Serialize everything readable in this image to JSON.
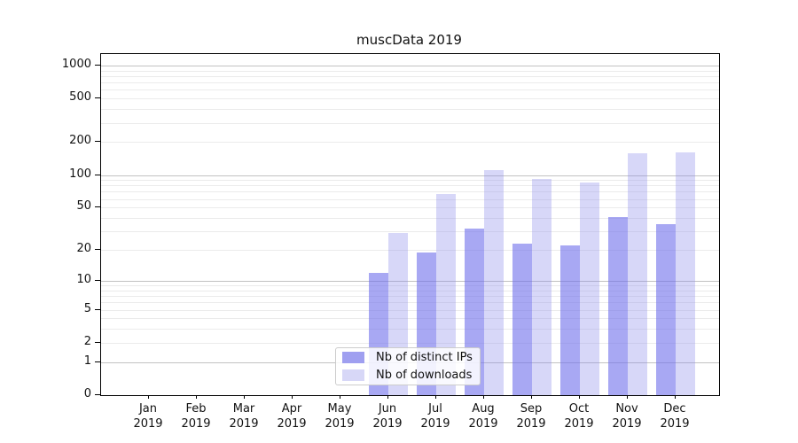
{
  "title": "muscData 2019",
  "legend": {
    "items": [
      {
        "label": "Nb of distinct IPs",
        "swatch_color": "#9f9ff0"
      },
      {
        "label": "Nb of downloads",
        "swatch_color": "#d7d7f7"
      }
    ]
  },
  "colors": {
    "bar_distinct_ips": "rgba(110,110,235,0.6)",
    "bar_downloads": "rgba(140,140,235,0.35)",
    "grid_major": "#c2c2c2",
    "grid_minor": "#ebebeb",
    "axis": "#000000"
  },
  "chart_data": {
    "type": "bar",
    "title": "muscData 2019",
    "categories": [
      "Jan 2019",
      "Feb 2019",
      "Mar 2019",
      "Apr 2019",
      "May 2019",
      "Jun 2019",
      "Jul 2019",
      "Aug 2019",
      "Sep 2019",
      "Oct 2019",
      "Nov 2019",
      "Dec 2019"
    ],
    "series": [
      {
        "name": "Nb of distinct IPs",
        "values": [
          0,
          0,
          0,
          0,
          0,
          12,
          19,
          32,
          23,
          22,
          41,
          35
        ]
      },
      {
        "name": "Nb of downloads",
        "values": [
          0,
          0,
          0,
          0,
          0,
          29,
          67,
          110,
          92,
          86,
          158,
          161
        ]
      }
    ],
    "y_ticks": [
      0,
      1,
      2,
      5,
      10,
      20,
      50,
      100,
      200,
      500,
      1000
    ],
    "y_minor_gridlines": [
      2,
      3,
      4,
      5,
      6,
      7,
      8,
      9,
      20,
      30,
      40,
      50,
      60,
      70,
      80,
      90,
      200,
      300,
      400,
      500,
      600,
      700,
      800,
      900
    ],
    "y_major_gridlines": [
      1,
      10,
      100,
      1000
    ],
    "y_scale": "log(1+v)",
    "ylim": [
      0,
      1272
    ],
    "grid": "both",
    "legend_position": "lower center",
    "xlabel": "",
    "ylabel": ""
  }
}
